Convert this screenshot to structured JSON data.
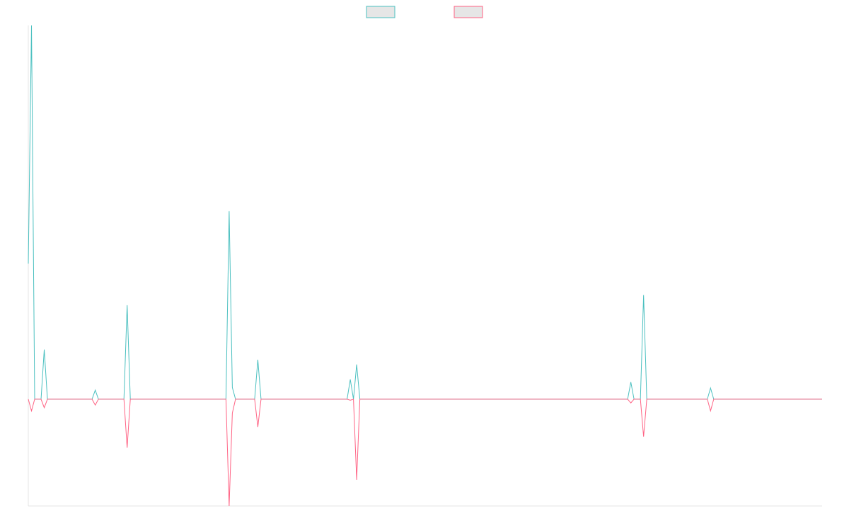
{
  "chart_data": {
    "type": "line",
    "categories": [
      null,
      null,
      null,
      null,
      null,
      null,
      null,
      null,
      null,
      null,
      null,
      null,
      null,
      null,
      null,
      null,
      null,
      null,
      null,
      null,
      null,
      null,
      null,
      null,
      null,
      null,
      null,
      null,
      null,
      null,
      null,
      null,
      null,
      null,
      null,
      null,
      null,
      null,
      null,
      null,
      null,
      null,
      null,
      null,
      null,
      null,
      null,
      null,
      null,
      null,
      null,
      null,
      null,
      null,
      null,
      null,
      null,
      null,
      null,
      null,
      null,
      null,
      null,
      null,
      null,
      null,
      null,
      null,
      null,
      null,
      null,
      null,
      null,
      null,
      null,
      null,
      null,
      null,
      null,
      null,
      null,
      null,
      null,
      null,
      null,
      null,
      null,
      null,
      null,
      null,
      null,
      null,
      null,
      null,
      null,
      null,
      null,
      null,
      null,
      null,
      null,
      null,
      null,
      null,
      null,
      null,
      null,
      null,
      null,
      null,
      null,
      null,
      null,
      null,
      null,
      null,
      null,
      null,
      null,
      null,
      null,
      null,
      null,
      null,
      null,
      null,
      null,
      null,
      null,
      null,
      null,
      null,
      null,
      null,
      null,
      null,
      null,
      null,
      null,
      null,
      null,
      null,
      null,
      null,
      null,
      null,
      null,
      null,
      null,
      null,
      null,
      null,
      null,
      null,
      null,
      null,
      null,
      null,
      null,
      null,
      null,
      null,
      null,
      null,
      null,
      null,
      null,
      null,
      null,
      null,
      null,
      null,
      null,
      null,
      null,
      null,
      null,
      null,
      null,
      null,
      null,
      null,
      null,
      null,
      null,
      null,
      null,
      null,
      null,
      null,
      null,
      null,
      null,
      null,
      null,
      null,
      null,
      null,
      null,
      null,
      null,
      null,
      null,
      null,
      null,
      null,
      null,
      null,
      null,
      null,
      null,
      null,
      null,
      null,
      null,
      null,
      null,
      null,
      null,
      null,
      null,
      null,
      null,
      null,
      null,
      null,
      null,
      null,
      null,
      null,
      null,
      null,
      null,
      null,
      null,
      null,
      null,
      null,
      null,
      null,
      null,
      null,
      null,
      null,
      null,
      null,
      null,
      null,
      null,
      null
    ],
    "series": [
      {
        "color": "#4bc0c0",
        "values": [
          2.54,
          7,
          0,
          0,
          0,
          0.93,
          0,
          0,
          0,
          0,
          0,
          0,
          0,
          0,
          0,
          0,
          0,
          0,
          0,
          0,
          0,
          0.17,
          0,
          0,
          0,
          0,
          0,
          0,
          0,
          0,
          0,
          1.76,
          0,
          0,
          0,
          0,
          0,
          0,
          0,
          0,
          0,
          0,
          0,
          0,
          0,
          0,
          0,
          0,
          0,
          0,
          0,
          0,
          0,
          0,
          0,
          0,
          0,
          0,
          0,
          0,
          0,
          0,
          0,
          3.52,
          0.22,
          0,
          0,
          0,
          0,
          0,
          0,
          0,
          0.74,
          0,
          0,
          0,
          0,
          0,
          0,
          0,
          0,
          0,
          0,
          0,
          0,
          0,
          0,
          0,
          0,
          0,
          0,
          0,
          0,
          0,
          0,
          0,
          0,
          0,
          0,
          0,
          0,
          0.37,
          0,
          0.65,
          0,
          0,
          0,
          0,
          0,
          0,
          0,
          0,
          0,
          0,
          0,
          0,
          0,
          0,
          0,
          0,
          0,
          0,
          0,
          0,
          0,
          0,
          0,
          0,
          0,
          0,
          0,
          0,
          0,
          0,
          0,
          0,
          0,
          0,
          0,
          0,
          0,
          0,
          0,
          0,
          0,
          0,
          0,
          0,
          0,
          0,
          0,
          0,
          0,
          0,
          0,
          0,
          0,
          0,
          0,
          0,
          0,
          0,
          0,
          0,
          0,
          0,
          0,
          0,
          0,
          0,
          0,
          0,
          0,
          0,
          0,
          0,
          0,
          0,
          0,
          0,
          0,
          0,
          0,
          0,
          0,
          0,
          0,
          0,
          0,
          0.32,
          0,
          0,
          0,
          1.95,
          0,
          0,
          0,
          0,
          0,
          0,
          0,
          0,
          0,
          0,
          0,
          0,
          0,
          0,
          0,
          0,
          0,
          0,
          0,
          0,
          0.21,
          0,
          0,
          0,
          0,
          0,
          0,
          0,
          0,
          0,
          0,
          0,
          0,
          0,
          0,
          0,
          0,
          0,
          0,
          0,
          0,
          0,
          0,
          0,
          0,
          0,
          0,
          0,
          0,
          0,
          0,
          0,
          0,
          0,
          0,
          0
        ]
      },
      {
        "color": "#ff6384",
        "values": [
          0,
          -0.22,
          0,
          0,
          0,
          -0.16,
          0,
          0,
          0,
          0,
          0,
          0,
          0,
          0,
          0,
          0,
          0,
          0,
          0,
          0,
          0,
          -0.11,
          0,
          0,
          0,
          0,
          0,
          0,
          0,
          0,
          0,
          -0.91,
          0,
          0,
          0,
          0,
          0,
          0,
          0,
          0,
          0,
          0,
          0,
          0,
          0,
          0,
          0,
          0,
          0,
          0,
          0,
          0,
          0,
          0,
          0,
          0,
          0,
          0,
          0,
          0,
          0,
          0,
          0,
          -2,
          -0.26,
          0,
          0,
          0,
          0,
          0,
          0,
          0,
          -0.52,
          0,
          0,
          0,
          0,
          0,
          0,
          0,
          0,
          0,
          0,
          0,
          0,
          0,
          0,
          0,
          0,
          0,
          0,
          0,
          0,
          0,
          0,
          0,
          0,
          0,
          0,
          0,
          0,
          -0.02,
          0,
          -1.51,
          0,
          0,
          0,
          0,
          0,
          0,
          0,
          0,
          0,
          0,
          0,
          0,
          0,
          0,
          0,
          0,
          0,
          0,
          0,
          0,
          0,
          0,
          0,
          0,
          0,
          0,
          0,
          0,
          0,
          0,
          0,
          0,
          0,
          0,
          0,
          0,
          0,
          0,
          0,
          0,
          0,
          0,
          0,
          0,
          0,
          0,
          0,
          0,
          0,
          0,
          0,
          0,
          0,
          0,
          0,
          0,
          0,
          0,
          0,
          0,
          0,
          0,
          0,
          0,
          0,
          0,
          0,
          0,
          0,
          0,
          0,
          0,
          0,
          0,
          0,
          0,
          0,
          0,
          0,
          0,
          0,
          0,
          0,
          0,
          0,
          -0.07,
          0,
          0,
          0,
          -0.7,
          0,
          0,
          0,
          0,
          0,
          0,
          0,
          0,
          0,
          0,
          0,
          0,
          0,
          0,
          0,
          0,
          0,
          0,
          0,
          0,
          -0.22,
          0,
          0,
          0,
          0,
          0,
          0,
          0,
          0,
          0,
          0,
          0,
          0,
          0,
          0,
          0,
          0,
          0,
          0,
          0,
          0,
          0,
          0,
          0,
          0,
          0,
          0,
          0,
          0,
          0,
          0,
          0,
          0,
          0,
          0,
          0
        ]
      }
    ],
    "ylim": [
      -2,
      7
    ]
  }
}
